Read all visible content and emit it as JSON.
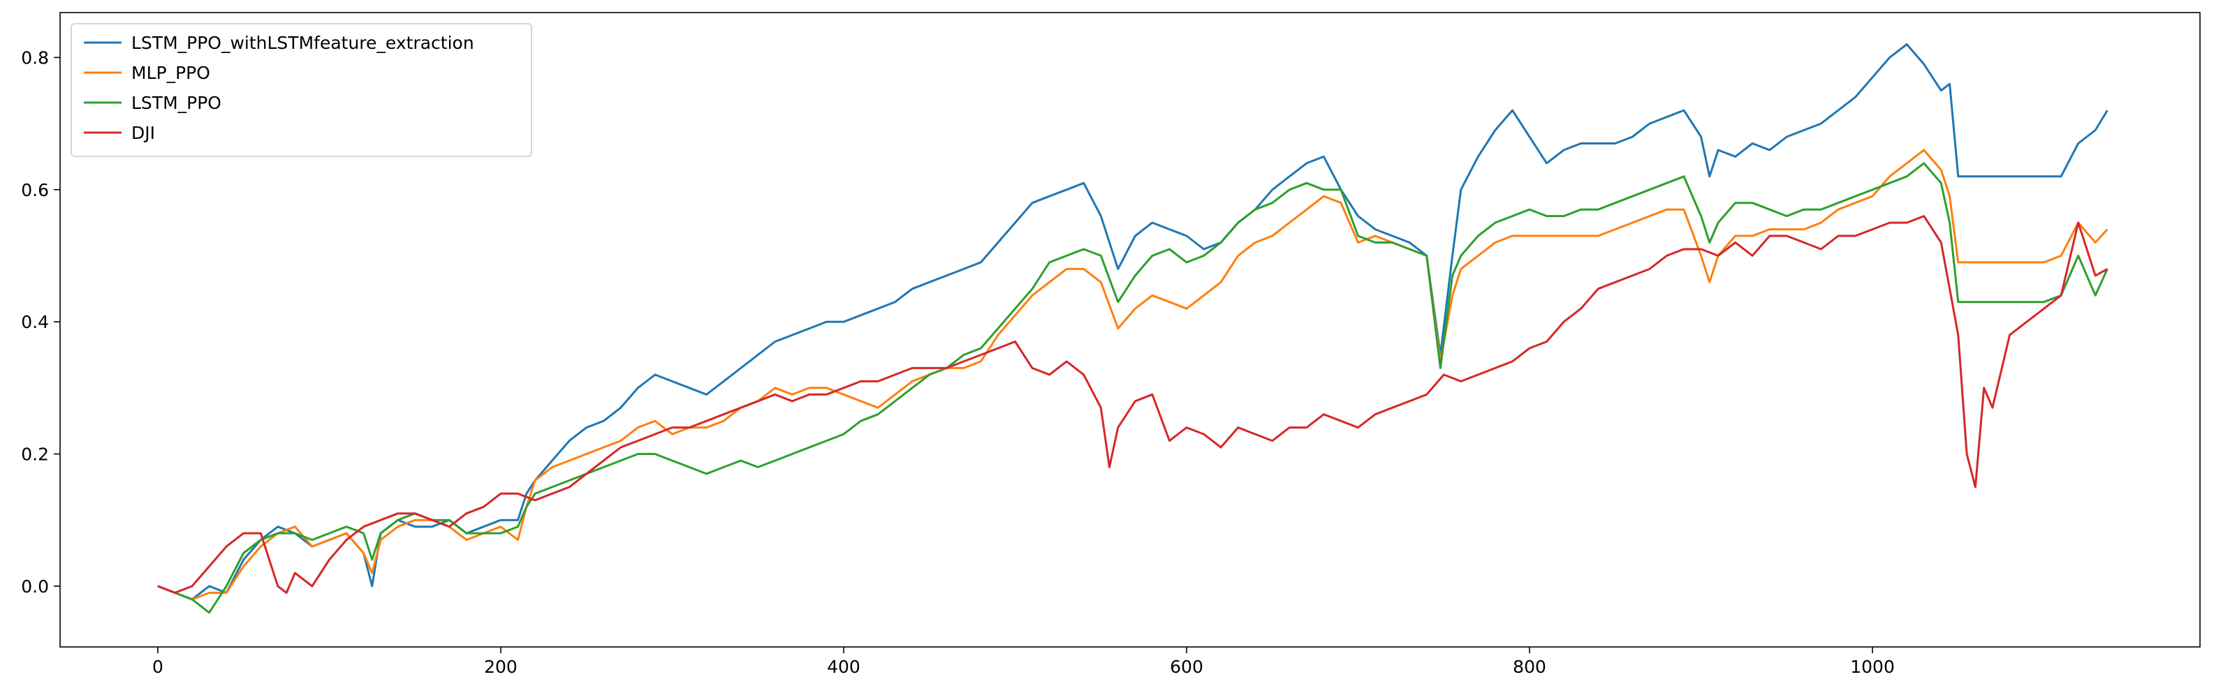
{
  "chart_data": {
    "type": "line",
    "title": "",
    "xlabel": "",
    "ylabel": "",
    "xlim": [
      -57,
      1191
    ],
    "ylim": [
      -0.092,
      0.868
    ],
    "grid": false,
    "legend_position": "upper-left",
    "xticks": [
      0,
      200,
      400,
      600,
      800,
      1000
    ],
    "yticks": [
      0.0,
      0.2,
      0.4,
      0.6,
      0.8
    ],
    "series": [
      {
        "name": "LSTM_PPO_withLSTMfeature_extraction",
        "color": "#1f77b4",
        "x": [
          0,
          10,
          20,
          30,
          40,
          50,
          60,
          70,
          80,
          90,
          100,
          110,
          120,
          125,
          130,
          140,
          150,
          160,
          170,
          180,
          190,
          200,
          210,
          215,
          220,
          230,
          240,
          250,
          260,
          270,
          280,
          290,
          300,
          310,
          320,
          330,
          340,
          350,
          360,
          370,
          380,
          390,
          400,
          410,
          420,
          430,
          440,
          450,
          460,
          470,
          480,
          490,
          500,
          510,
          520,
          530,
          540,
          550,
          560,
          570,
          580,
          590,
          600,
          610,
          620,
          630,
          640,
          650,
          660,
          670,
          680,
          690,
          700,
          710,
          720,
          730,
          740,
          748,
          755,
          760,
          770,
          780,
          790,
          800,
          810,
          820,
          830,
          840,
          850,
          860,
          870,
          880,
          890,
          900,
          905,
          910,
          920,
          930,
          940,
          950,
          960,
          970,
          980,
          990,
          1000,
          1010,
          1020,
          1030,
          1040,
          1045,
          1050,
          1060,
          1080,
          1100,
          1110,
          1120,
          1130,
          1137
        ],
        "values": [
          0.0,
          -0.01,
          -0.02,
          0.0,
          -0.01,
          0.04,
          0.07,
          0.09,
          0.08,
          0.06,
          0.07,
          0.08,
          0.05,
          0.0,
          0.08,
          0.1,
          0.09,
          0.09,
          0.1,
          0.08,
          0.09,
          0.1,
          0.1,
          0.14,
          0.16,
          0.19,
          0.22,
          0.24,
          0.25,
          0.27,
          0.3,
          0.32,
          0.31,
          0.3,
          0.29,
          0.31,
          0.33,
          0.35,
          0.37,
          0.38,
          0.39,
          0.4,
          0.4,
          0.41,
          0.42,
          0.43,
          0.45,
          0.46,
          0.47,
          0.48,
          0.49,
          0.52,
          0.55,
          0.58,
          0.59,
          0.6,
          0.61,
          0.56,
          0.48,
          0.53,
          0.55,
          0.54,
          0.53,
          0.51,
          0.52,
          0.55,
          0.57,
          0.6,
          0.62,
          0.64,
          0.65,
          0.6,
          0.56,
          0.54,
          0.53,
          0.52,
          0.5,
          0.35,
          0.5,
          0.6,
          0.65,
          0.69,
          0.72,
          0.68,
          0.64,
          0.66,
          0.67,
          0.67,
          0.67,
          0.68,
          0.7,
          0.71,
          0.72,
          0.68,
          0.62,
          0.66,
          0.65,
          0.67,
          0.66,
          0.68,
          0.69,
          0.7,
          0.72,
          0.74,
          0.77,
          0.8,
          0.82,
          0.79,
          0.75,
          0.76,
          0.62,
          0.62,
          0.62,
          0.62,
          0.62,
          0.67,
          0.69,
          0.72
        ]
      },
      {
        "name": "MLP_PPO",
        "color": "#ff7f0e",
        "x": [
          0,
          10,
          20,
          30,
          40,
          50,
          60,
          70,
          80,
          90,
          100,
          110,
          120,
          125,
          130,
          140,
          150,
          160,
          170,
          180,
          190,
          200,
          210,
          215,
          220,
          230,
          240,
          250,
          260,
          270,
          280,
          290,
          300,
          310,
          320,
          330,
          340,
          350,
          360,
          370,
          380,
          390,
          400,
          410,
          420,
          430,
          440,
          450,
          460,
          470,
          480,
          490,
          500,
          510,
          520,
          530,
          540,
          550,
          560,
          570,
          580,
          590,
          600,
          610,
          620,
          630,
          640,
          650,
          660,
          670,
          680,
          690,
          700,
          710,
          720,
          730,
          740,
          748,
          755,
          760,
          770,
          780,
          790,
          800,
          810,
          820,
          830,
          840,
          850,
          860,
          870,
          880,
          890,
          900,
          905,
          910,
          920,
          930,
          940,
          950,
          960,
          970,
          980,
          990,
          1000,
          1010,
          1020,
          1030,
          1040,
          1045,
          1050,
          1060,
          1080,
          1100,
          1110,
          1120,
          1130,
          1137
        ],
        "values": [
          0.0,
          -0.01,
          -0.02,
          -0.01,
          -0.01,
          0.03,
          0.06,
          0.08,
          0.09,
          0.06,
          0.07,
          0.08,
          0.05,
          0.02,
          0.07,
          0.09,
          0.1,
          0.1,
          0.09,
          0.07,
          0.08,
          0.09,
          0.07,
          0.12,
          0.16,
          0.18,
          0.19,
          0.2,
          0.21,
          0.22,
          0.24,
          0.25,
          0.23,
          0.24,
          0.24,
          0.25,
          0.27,
          0.28,
          0.3,
          0.29,
          0.3,
          0.3,
          0.29,
          0.28,
          0.27,
          0.29,
          0.31,
          0.32,
          0.33,
          0.33,
          0.34,
          0.38,
          0.41,
          0.44,
          0.46,
          0.48,
          0.48,
          0.46,
          0.39,
          0.42,
          0.44,
          0.43,
          0.42,
          0.44,
          0.46,
          0.5,
          0.52,
          0.53,
          0.55,
          0.57,
          0.59,
          0.58,
          0.52,
          0.53,
          0.52,
          0.51,
          0.5,
          0.34,
          0.44,
          0.48,
          0.5,
          0.52,
          0.53,
          0.53,
          0.53,
          0.53,
          0.53,
          0.53,
          0.54,
          0.55,
          0.56,
          0.57,
          0.57,
          0.5,
          0.46,
          0.5,
          0.53,
          0.53,
          0.54,
          0.54,
          0.54,
          0.55,
          0.57,
          0.58,
          0.59,
          0.62,
          0.64,
          0.66,
          0.63,
          0.59,
          0.49,
          0.49,
          0.49,
          0.49,
          0.5,
          0.55,
          0.52,
          0.54
        ]
      },
      {
        "name": "LSTM_PPO",
        "color": "#2ca02c",
        "x": [
          0,
          10,
          20,
          30,
          40,
          50,
          60,
          70,
          80,
          90,
          100,
          110,
          120,
          125,
          130,
          140,
          150,
          160,
          170,
          180,
          190,
          200,
          210,
          215,
          220,
          230,
          240,
          250,
          260,
          270,
          280,
          290,
          300,
          310,
          320,
          330,
          340,
          350,
          360,
          370,
          380,
          390,
          400,
          410,
          420,
          430,
          440,
          450,
          460,
          470,
          480,
          490,
          500,
          510,
          520,
          530,
          540,
          550,
          560,
          570,
          580,
          590,
          600,
          610,
          620,
          630,
          640,
          650,
          660,
          670,
          680,
          690,
          700,
          710,
          720,
          730,
          740,
          748,
          755,
          760,
          770,
          780,
          790,
          800,
          810,
          820,
          830,
          840,
          850,
          860,
          870,
          880,
          890,
          900,
          905,
          910,
          920,
          930,
          940,
          950,
          960,
          970,
          980,
          990,
          1000,
          1010,
          1020,
          1030,
          1040,
          1045,
          1050,
          1060,
          1080,
          1100,
          1110,
          1120,
          1130,
          1137
        ],
        "values": [
          0.0,
          -0.01,
          -0.02,
          -0.04,
          0.0,
          0.05,
          0.07,
          0.08,
          0.08,
          0.07,
          0.08,
          0.09,
          0.08,
          0.04,
          0.08,
          0.1,
          0.11,
          0.1,
          0.1,
          0.08,
          0.08,
          0.08,
          0.09,
          0.12,
          0.14,
          0.15,
          0.16,
          0.17,
          0.18,
          0.19,
          0.2,
          0.2,
          0.19,
          0.18,
          0.17,
          0.18,
          0.19,
          0.18,
          0.19,
          0.2,
          0.21,
          0.22,
          0.23,
          0.25,
          0.26,
          0.28,
          0.3,
          0.32,
          0.33,
          0.35,
          0.36,
          0.39,
          0.42,
          0.45,
          0.49,
          0.5,
          0.51,
          0.5,
          0.43,
          0.47,
          0.5,
          0.51,
          0.49,
          0.5,
          0.52,
          0.55,
          0.57,
          0.58,
          0.6,
          0.61,
          0.6,
          0.6,
          0.53,
          0.52,
          0.52,
          0.51,
          0.5,
          0.33,
          0.47,
          0.5,
          0.53,
          0.55,
          0.56,
          0.57,
          0.56,
          0.56,
          0.57,
          0.57,
          0.58,
          0.59,
          0.6,
          0.61,
          0.62,
          0.56,
          0.52,
          0.55,
          0.58,
          0.58,
          0.57,
          0.56,
          0.57,
          0.57,
          0.58,
          0.59,
          0.6,
          0.61,
          0.62,
          0.64,
          0.61,
          0.55,
          0.43,
          0.43,
          0.43,
          0.43,
          0.44,
          0.5,
          0.44,
          0.48
        ]
      },
      {
        "name": "DJI",
        "color": "#d62728",
        "x": [
          0,
          10,
          20,
          30,
          40,
          50,
          60,
          70,
          75,
          80,
          90,
          100,
          110,
          120,
          130,
          140,
          150,
          160,
          170,
          180,
          190,
          200,
          210,
          220,
          230,
          240,
          250,
          260,
          270,
          280,
          290,
          300,
          310,
          320,
          330,
          340,
          350,
          360,
          370,
          380,
          390,
          400,
          410,
          420,
          430,
          440,
          450,
          460,
          470,
          480,
          490,
          500,
          510,
          520,
          530,
          540,
          550,
          555,
          560,
          570,
          580,
          590,
          600,
          610,
          620,
          630,
          640,
          650,
          660,
          670,
          680,
          690,
          700,
          710,
          720,
          730,
          740,
          750,
          760,
          770,
          780,
          790,
          800,
          810,
          820,
          830,
          840,
          850,
          860,
          870,
          880,
          890,
          900,
          910,
          920,
          930,
          940,
          950,
          960,
          970,
          980,
          990,
          1000,
          1010,
          1020,
          1030,
          1040,
          1045,
          1050,
          1055,
          1060,
          1065,
          1070,
          1080,
          1090,
          1100,
          1110,
          1120,
          1130,
          1137
        ],
        "values": [
          0.0,
          -0.01,
          0.0,
          0.03,
          0.06,
          0.08,
          0.08,
          0.0,
          -0.01,
          0.02,
          0.0,
          0.04,
          0.07,
          0.09,
          0.1,
          0.11,
          0.11,
          0.1,
          0.09,
          0.11,
          0.12,
          0.14,
          0.14,
          0.13,
          0.14,
          0.15,
          0.17,
          0.19,
          0.21,
          0.22,
          0.23,
          0.24,
          0.24,
          0.25,
          0.26,
          0.27,
          0.28,
          0.29,
          0.28,
          0.29,
          0.29,
          0.3,
          0.31,
          0.31,
          0.32,
          0.33,
          0.33,
          0.33,
          0.34,
          0.35,
          0.36,
          0.37,
          0.33,
          0.32,
          0.34,
          0.32,
          0.27,
          0.18,
          0.24,
          0.28,
          0.29,
          0.22,
          0.24,
          0.23,
          0.21,
          0.24,
          0.23,
          0.22,
          0.24,
          0.24,
          0.26,
          0.25,
          0.24,
          0.26,
          0.27,
          0.28,
          0.29,
          0.32,
          0.31,
          0.32,
          0.33,
          0.34,
          0.36,
          0.37,
          0.4,
          0.42,
          0.45,
          0.46,
          0.47,
          0.48,
          0.5,
          0.51,
          0.51,
          0.5,
          0.52,
          0.5,
          0.53,
          0.53,
          0.52,
          0.51,
          0.53,
          0.53,
          0.54,
          0.55,
          0.55,
          0.56,
          0.52,
          0.45,
          0.38,
          0.2,
          0.15,
          0.3,
          0.27,
          0.38,
          0.4,
          0.42,
          0.44,
          0.55,
          0.47,
          0.48
        ]
      }
    ]
  }
}
